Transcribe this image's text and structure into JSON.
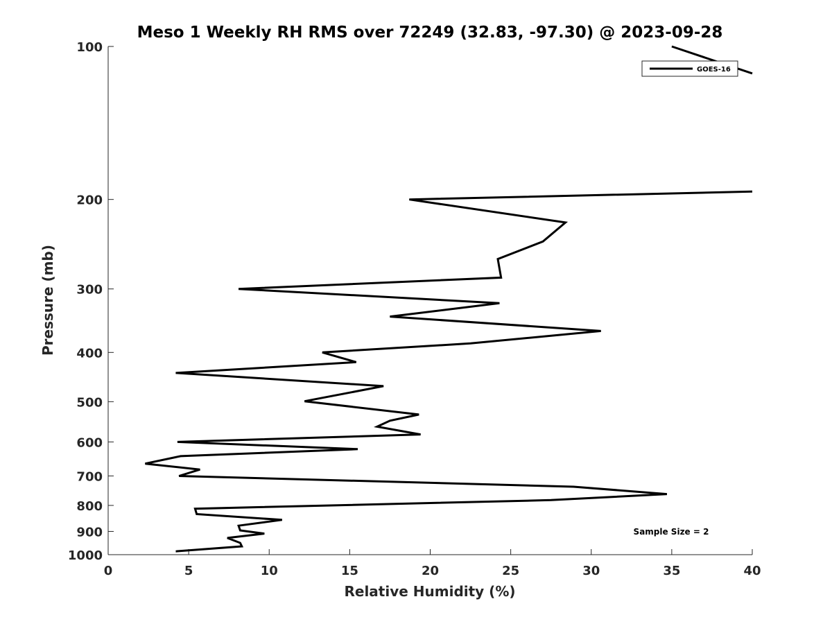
{
  "chart_data": {
    "type": "line",
    "title": "Meso 1 Weekly RH RMS over 72249 (32.83, -97.30) @ 2023-09-28",
    "xlabel": "Relative Humidity (%)",
    "ylabel": "Pressure (mb)",
    "xlim": [
      0,
      40
    ],
    "ylim": [
      100,
      1000
    ],
    "y_scale": "log",
    "y_reversed": true,
    "x_ticks": [
      0,
      5,
      10,
      15,
      20,
      25,
      30,
      35,
      40
    ],
    "y_ticks": [
      100,
      200,
      300,
      400,
      500,
      600,
      700,
      800,
      900,
      1000
    ],
    "grid": false,
    "legend_position": "top-right",
    "line_color": "#000000",
    "annotation": "Sample Size = 2",
    "series": [
      {
        "name": "GOES-16",
        "points": [
          [
            35.0,
            100
          ],
          [
            40.0,
            113
          ],
          [
            40.0,
            193
          ],
          [
            18.7,
            200
          ],
          [
            28.4,
            222
          ],
          [
            27.0,
            242
          ],
          [
            24.2,
            262
          ],
          [
            24.4,
            285
          ],
          [
            8.1,
            300
          ],
          [
            24.3,
            320
          ],
          [
            17.5,
            340
          ],
          [
            30.6,
            363
          ],
          [
            22.5,
            384
          ],
          [
            13.3,
            400
          ],
          [
            15.4,
            418
          ],
          [
            4.2,
            439
          ],
          [
            17.1,
            466
          ],
          [
            12.2,
            499
          ],
          [
            19.3,
            530
          ],
          [
            17.5,
            545
          ],
          [
            16.7,
            560
          ],
          [
            19.4,
            580
          ],
          [
            4.3,
            600
          ],
          [
            15.5,
            620
          ],
          [
            4.5,
            640
          ],
          [
            2.3,
            662
          ],
          [
            5.7,
            680
          ],
          [
            4.4,
            700
          ],
          [
            28.9,
            735
          ],
          [
            34.7,
            760
          ],
          [
            27.5,
            781
          ],
          [
            5.4,
            812
          ],
          [
            5.5,
            832
          ],
          [
            10.8,
            854
          ],
          [
            8.1,
            877
          ],
          [
            8.2,
            896
          ],
          [
            9.7,
            909
          ],
          [
            7.4,
            927
          ],
          [
            8.2,
            948
          ],
          [
            8.3,
            963
          ],
          [
            4.2,
            985
          ]
        ]
      }
    ]
  }
}
